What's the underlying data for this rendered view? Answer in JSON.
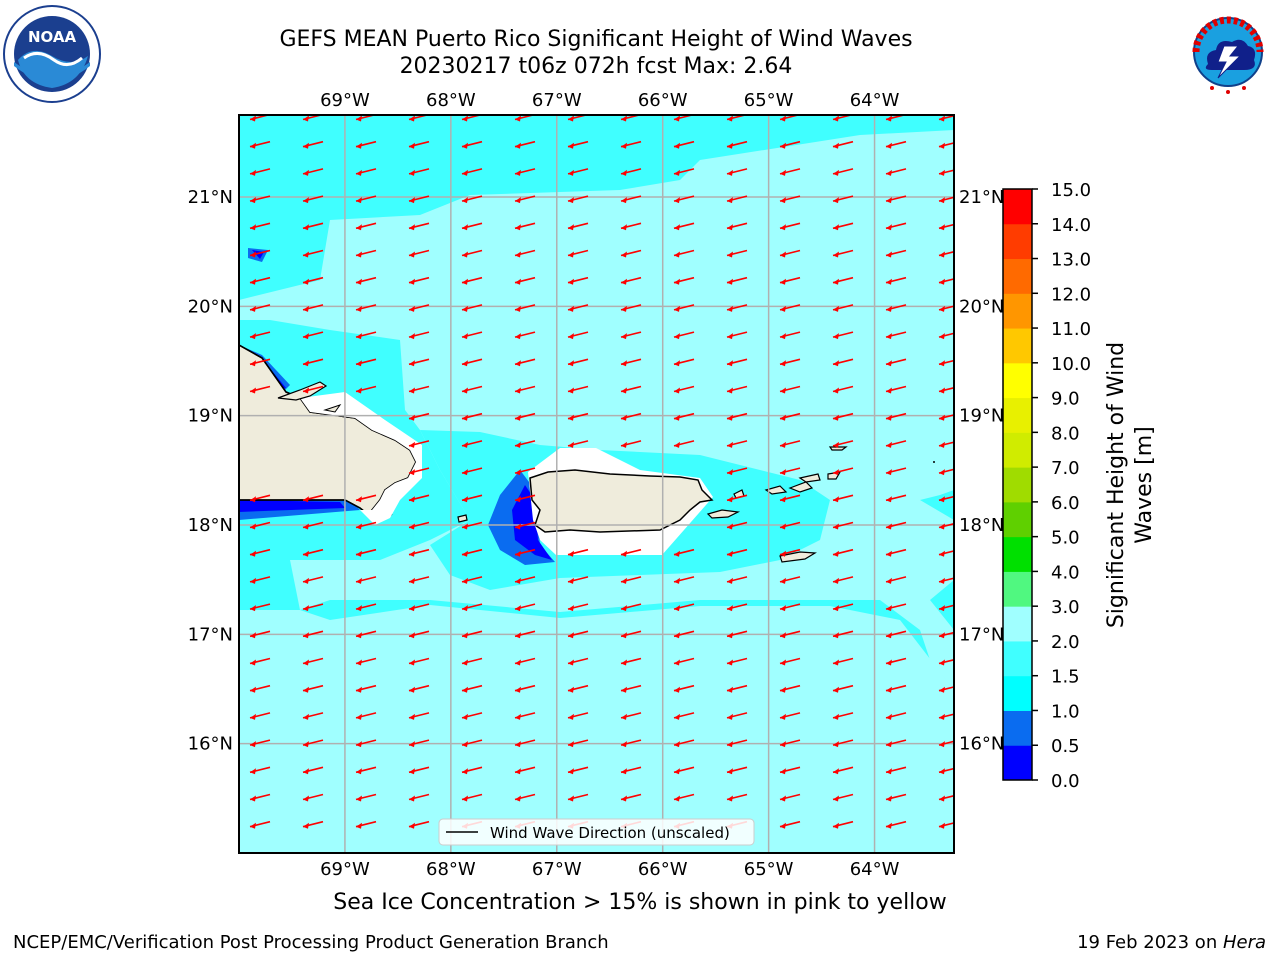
{
  "header": {
    "title_line1": "GEFS MEAN Puerto Rico Significant Height of Wind Waves",
    "title_line2": "20230217 t06z 072h fcst   Max: 2.64"
  },
  "logos": {
    "left": {
      "name": "noaa-logo",
      "text": "NOAA"
    },
    "right": {
      "name": "nws-logo"
    }
  },
  "map": {
    "lon_labels": [
      "69°W",
      "68°W",
      "67°W",
      "66°W",
      "65°W",
      "64°W"
    ],
    "lat_labels": [
      "21°N",
      "20°N",
      "19°N",
      "18°N",
      "17°N",
      "16°N"
    ],
    "lon_values": [
      -69,
      -68,
      -67,
      -66,
      -65,
      -64
    ],
    "lat_values": [
      21,
      20,
      19,
      18,
      17,
      16
    ],
    "extent": {
      "lon_min": -70.0,
      "lon_max": -63.25,
      "lat_min": 15.0,
      "lat_max": 21.75
    },
    "legend_label": "Wind Wave Direction (unscaled)",
    "arrow_color": "#ff0000",
    "land_color": "#efecdc"
  },
  "colorbar": {
    "label_line1": "Significant Height of Wind",
    "label_line2": "Waves [m]",
    "ticks": [
      "0.0",
      "0.5",
      "1.0",
      "1.5",
      "2.0",
      "3.0",
      "4.0",
      "5.0",
      "6.0",
      "7.0",
      "8.0",
      "9.0",
      "10.0",
      "11.0",
      "12.0",
      "13.0",
      "14.0",
      "15.0"
    ],
    "colors": [
      "#0000ff",
      "#0a6cf0",
      "#00ffff",
      "#40ffff",
      "#a0ffff",
      "#50f880",
      "#00e000",
      "#5fd000",
      "#a0dc00",
      "#d0ec00",
      "#e8f000",
      "#ffff00",
      "#ffc800",
      "#ff9600",
      "#ff6a00",
      "#ff3c00",
      "#ff0000"
    ]
  },
  "note": "Sea Ice Concentration > 15% is shown in pink to yellow",
  "footer": {
    "left": "NCEP/EMC/Verification Post Processing Product Generation Branch",
    "right_prefix": "19 Feb 2023 on ",
    "right_host": "Hera"
  }
}
